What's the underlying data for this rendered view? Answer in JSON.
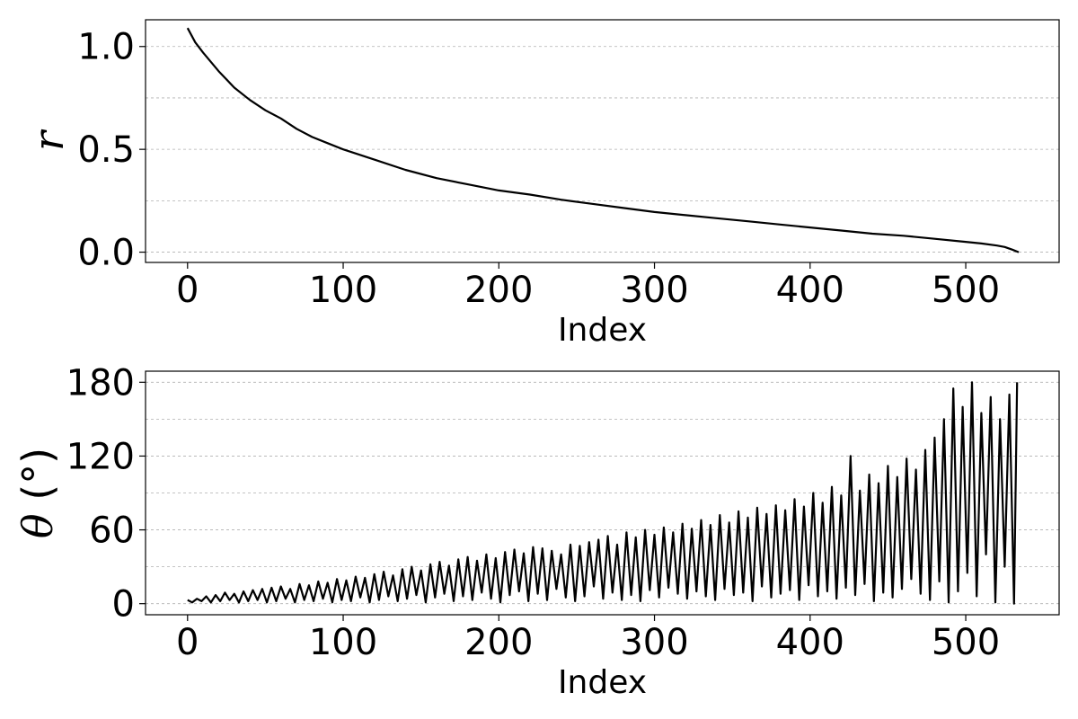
{
  "chart_data": [
    {
      "type": "line",
      "xlabel": "Index",
      "ylabel": "r",
      "xlim": [
        -27,
        560
      ],
      "ylim": [
        -0.05,
        1.13
      ],
      "xticks": [
        0,
        100,
        200,
        300,
        400,
        500
      ],
      "xtick_labels": [
        "0",
        "100",
        "200",
        "300",
        "400",
        "500"
      ],
      "yticks": [
        0.0,
        0.5,
        1.0
      ],
      "ytick_labels": [
        "0.0",
        "0.5",
        "1.0"
      ],
      "ygrid": [
        0.0,
        0.25,
        0.5,
        0.75,
        1.0
      ],
      "grid": "y-dashed",
      "color": "#000000",
      "series": [
        {
          "x": [
            0,
            5,
            10,
            20,
            30,
            40,
            50,
            60,
            70,
            80,
            90,
            100,
            120,
            140,
            160,
            180,
            200,
            220,
            240,
            260,
            280,
            300,
            320,
            340,
            360,
            380,
            400,
            420,
            440,
            460,
            480,
            500,
            510,
            520,
            525,
            530,
            534
          ],
          "values": [
            1.09,
            1.02,
            0.97,
            0.88,
            0.8,
            0.74,
            0.69,
            0.65,
            0.6,
            0.56,
            0.53,
            0.5,
            0.45,
            0.4,
            0.36,
            0.33,
            0.3,
            0.28,
            0.255,
            0.235,
            0.215,
            0.195,
            0.18,
            0.165,
            0.15,
            0.135,
            0.12,
            0.105,
            0.09,
            0.08,
            0.065,
            0.05,
            0.042,
            0.032,
            0.025,
            0.012,
            0.0
          ]
        }
      ]
    },
    {
      "type": "line",
      "xlabel": "Index",
      "ylabel": "θ (°)",
      "xlim": [
        -27,
        560
      ],
      "ylim": [
        -9,
        189
      ],
      "xticks": [
        0,
        100,
        200,
        300,
        400,
        500
      ],
      "xtick_labels": [
        "0",
        "100",
        "200",
        "300",
        "400",
        "500"
      ],
      "yticks": [
        0,
        60,
        120,
        180
      ],
      "ytick_labels": [
        "0",
        "60",
        "120",
        "180"
      ],
      "ygrid": [
        0,
        30,
        60,
        90,
        120,
        150,
        180
      ],
      "grid": "y-dashed",
      "color": "#000000",
      "series": [
        {
          "x": [
            0,
            3,
            6,
            9,
            12,
            15,
            18,
            21,
            24,
            27,
            30,
            33,
            36,
            39,
            42,
            45,
            48,
            51,
            54,
            57,
            60,
            63,
            66,
            69,
            72,
            75,
            78,
            81,
            84,
            87,
            90,
            93,
            96,
            99,
            102,
            105,
            108,
            111,
            114,
            117,
            120,
            123,
            126,
            129,
            132,
            135,
            138,
            141,
            144,
            147,
            150,
            153,
            156,
            159,
            162,
            165,
            168,
            171,
            174,
            177,
            180,
            183,
            186,
            189,
            192,
            195,
            198,
            201,
            204,
            207,
            210,
            213,
            216,
            219,
            222,
            225,
            228,
            231,
            234,
            237,
            240,
            243,
            246,
            249,
            252,
            255,
            258,
            261,
            264,
            267,
            270,
            273,
            276,
            279,
            282,
            285,
            288,
            291,
            294,
            297,
            300,
            303,
            306,
            309,
            312,
            315,
            318,
            321,
            324,
            327,
            330,
            333,
            336,
            339,
            342,
            345,
            348,
            351,
            354,
            357,
            360,
            363,
            366,
            369,
            372,
            375,
            378,
            381,
            384,
            387,
            390,
            393,
            396,
            399,
            402,
            405,
            408,
            411,
            414,
            417,
            420,
            423,
            426,
            429,
            432,
            435,
            438,
            441,
            444,
            447,
            450,
            453,
            456,
            459,
            462,
            465,
            468,
            471,
            474,
            477,
            480,
            483,
            486,
            489,
            492,
            495,
            498,
            501,
            504,
            507,
            510,
            513,
            516,
            519,
            522,
            525,
            528,
            531,
            533
          ],
          "values": [
            3,
            1,
            4,
            2,
            6,
            1,
            7,
            2,
            9,
            3,
            8,
            1,
            10,
            2,
            11,
            3,
            12,
            1,
            13,
            2,
            14,
            4,
            12,
            1,
            16,
            3,
            15,
            2,
            18,
            4,
            17,
            1,
            20,
            3,
            19,
            2,
            22,
            5,
            21,
            1,
            24,
            3,
            26,
            6,
            23,
            2,
            28,
            4,
            30,
            7,
            27,
            1,
            32,
            5,
            34,
            8,
            31,
            2,
            36,
            6,
            38,
            3,
            35,
            9,
            40,
            4,
            37,
            1,
            42,
            7,
            44,
            10,
            41,
            2,
            46,
            8,
            45,
            3,
            43,
            12,
            40,
            5,
            48,
            2,
            47,
            6,
            50,
            14,
            52,
            4,
            55,
            9,
            48,
            3,
            58,
            7,
            54,
            2,
            60,
            11,
            56,
            5,
            62,
            13,
            58,
            8,
            65,
            4,
            61,
            10,
            68,
            6,
            64,
            3,
            72,
            12,
            66,
            7,
            75,
            9,
            70,
            2,
            78,
            14,
            73,
            5,
            80,
            8,
            76,
            11,
            85,
            3,
            79,
            15,
            90,
            6,
            82,
            10,
            95,
            4,
            88,
            13,
            120,
            7,
            92,
            16,
            105,
            2,
            98,
            9,
            112,
            5,
            103,
            12,
            118,
            20,
            109,
            8,
            125,
            3,
            135,
            18,
            150,
            1,
            175,
            10,
            160,
            25,
            180,
            6,
            155,
            40,
            168,
            1,
            150,
            30,
            170,
            0,
            180
          ]
        }
      ]
    }
  ]
}
